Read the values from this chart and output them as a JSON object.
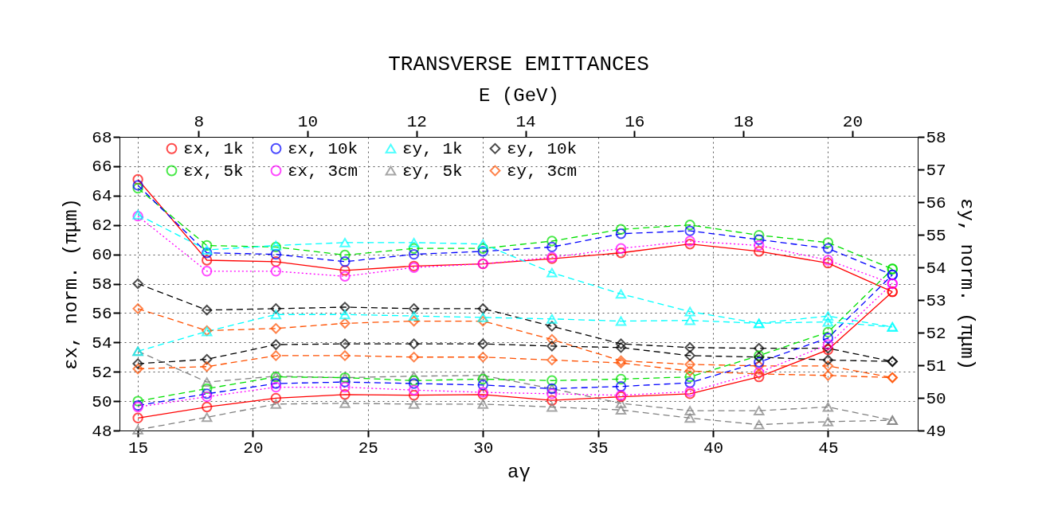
{
  "chart_data": {
    "type": "line",
    "title": "TRANSVERSE EMITTANCES",
    "xlabel": "aγ",
    "ylabel": "εx, norm. (πμm)",
    "y2label": "εy, norm. (πμm)",
    "x2label": "E (GeV)",
    "x": [
      15,
      18,
      21,
      24,
      27,
      30,
      33,
      36,
      39,
      42,
      45,
      47.8
    ],
    "xlim": [
      14.2,
      48.9
    ],
    "xticks": [
      15,
      20,
      25,
      30,
      35,
      40,
      45
    ],
    "ylim": [
      48,
      68
    ],
    "yticks": [
      48,
      50,
      52,
      54,
      56,
      58,
      60,
      62,
      64,
      66,
      68
    ],
    "y2lim": [
      49,
      58
    ],
    "y2ticks": [
      49,
      50,
      51,
      52,
      53,
      54,
      55,
      56,
      57,
      58
    ],
    "x2lim": [
      6.55,
      21.2
    ],
    "x2ticks": [
      8,
      10,
      12,
      14,
      16,
      18,
      20
    ],
    "grid": true,
    "legend": "top",
    "series": [
      {
        "name": "εx, 1k",
        "color": "#ff0000",
        "marker": "circle",
        "line_style": "solid",
        "values": [
          65.1,
          59.6,
          59.5,
          58.9,
          59.2,
          59.35,
          59.7,
          60.1,
          60.7,
          60.2,
          59.4,
          57.45
        ]
      },
      {
        "name": "εx, 5k",
        "color": "#00e000",
        "marker": "circle",
        "line_style": "dashed",
        "values": [
          64.5,
          60.6,
          60.5,
          59.95,
          60.4,
          60.4,
          60.9,
          61.7,
          62.0,
          61.3,
          60.8,
          59.0
        ]
      },
      {
        "name": "εx, 10k",
        "color": "#0000ff",
        "marker": "circle",
        "line_style": "dashed",
        "values": [
          64.7,
          60.1,
          60.0,
          59.5,
          60.0,
          60.2,
          60.5,
          61.4,
          61.6,
          61.0,
          60.4,
          58.6
        ]
      },
      {
        "name": "εx, 3cm",
        "color": "#ff00ff",
        "marker": "circle",
        "line_style": "dotted",
        "values": [
          62.6,
          58.85,
          58.85,
          58.5,
          59.1,
          59.35,
          59.8,
          60.4,
          60.9,
          60.6,
          59.6,
          58.0
        ]
      },
      {
        "name": "εy, 1k",
        "color": "#00ffff",
        "marker": "triangle",
        "line_style": "dashed",
        "values": [
          62.7,
          60.3,
          60.6,
          60.8,
          60.8,
          60.7,
          58.75,
          57.3,
          56.1,
          55.3,
          55.8,
          55.05
        ]
      },
      {
        "name": "εy, 5k",
        "color": "#808080",
        "marker": "triangle",
        "line_style": "dashed",
        "values": [
          53.4,
          51.3,
          51.7,
          51.6,
          51.7,
          51.75,
          50.85,
          49.85,
          49.35,
          49.35,
          49.6,
          48.7
        ]
      },
      {
        "name": "εy, 10k",
        "color": "#000000",
        "marker": "diamond",
        "line_style": "dashed",
        "values": [
          58.0,
          56.2,
          56.3,
          56.4,
          56.3,
          56.3,
          55.1,
          53.9,
          53.65,
          53.6,
          53.6,
          52.7
        ]
      },
      {
        "name": "εy, 3cm",
        "color": "#ff5000",
        "marker": "diamond",
        "line_style": "dashed",
        "values": [
          56.3,
          54.8,
          54.95,
          55.3,
          55.45,
          55.45,
          54.2,
          52.75,
          52.5,
          52.4,
          52.4,
          51.6
        ]
      },
      {
        "color": "#ff0000",
        "marker": "circle",
        "line_style": "solid",
        "values": [
          48.85,
          49.6,
          50.2,
          50.45,
          50.4,
          50.45,
          50.05,
          50.3,
          50.5,
          51.65,
          53.5,
          57.45
        ]
      },
      {
        "color": "#00e000",
        "marker": "circle",
        "line_style": "dashed",
        "values": [
          50.0,
          50.85,
          51.65,
          51.6,
          51.4,
          51.5,
          51.4,
          51.5,
          51.65,
          53.1,
          54.7,
          59.0
        ]
      },
      {
        "color": "#0000ff",
        "marker": "circle",
        "line_style": "dashed",
        "values": [
          49.7,
          50.5,
          51.2,
          51.3,
          51.2,
          51.1,
          50.85,
          51.0,
          51.25,
          52.65,
          54.3,
          58.6
        ]
      },
      {
        "color": "#ff00ff",
        "marker": "circle",
        "line_style": "dotted",
        "values": [
          49.6,
          50.3,
          50.95,
          50.95,
          50.75,
          50.6,
          50.5,
          50.4,
          50.65,
          51.95,
          53.85,
          58.0
        ]
      },
      {
        "color": "#00ffff",
        "marker": "triangle",
        "line_style": "dashed",
        "values": [
          53.4,
          54.75,
          55.9,
          55.9,
          55.8,
          55.7,
          55.6,
          55.45,
          55.5,
          55.3,
          55.4,
          55.05
        ]
      },
      {
        "color": "#808080",
        "marker": "triangle",
        "line_style": "dashed",
        "values": [
          48.05,
          48.9,
          49.8,
          49.85,
          49.8,
          49.8,
          49.6,
          49.4,
          48.85,
          48.4,
          48.6,
          48.7
        ]
      },
      {
        "color": "#000000",
        "marker": "diamond",
        "line_style": "dashed",
        "values": [
          52.55,
          52.85,
          53.85,
          53.9,
          53.9,
          53.9,
          53.75,
          53.65,
          53.1,
          53.0,
          52.8,
          52.7
        ]
      },
      {
        "color": "#ff5000",
        "marker": "diamond",
        "line_style": "dashed",
        "values": [
          52.2,
          52.35,
          53.1,
          53.1,
          53.0,
          53.0,
          52.8,
          52.6,
          52.05,
          51.85,
          51.75,
          51.6
        ]
      }
    ]
  }
}
